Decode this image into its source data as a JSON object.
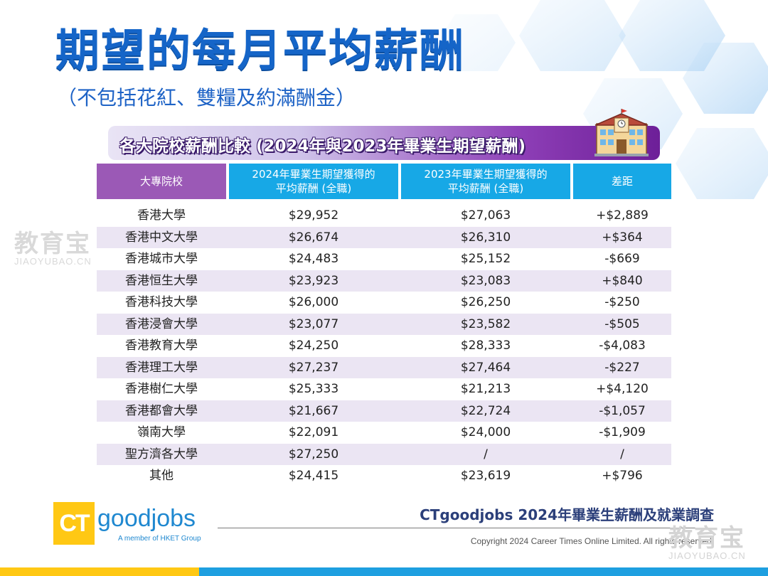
{
  "slide": {
    "title": "期望的每月平均薪酬",
    "subtitle": "（不包括花紅、雙糧及約滿酬金）",
    "section_heading": "各大院校薪酬比較 (2024年與2023年畢業生期望薪酬)"
  },
  "table": {
    "headers": {
      "school": "大專院校",
      "y2024_line1": "2024年畢業生期望獲得的",
      "y2024_line2": "平均薪酬 (全職)",
      "y2023_line1": "2023年畢業生期望獲得的",
      "y2023_line2": "平均薪酬 (全職)",
      "diff": "差距"
    },
    "rows": [
      {
        "school": "香港大學",
        "y2024": "$29,952",
        "y2023": "$27,063",
        "diff": "+$2,889"
      },
      {
        "school": "香港中文大學",
        "y2024": "$26,674",
        "y2023": "$26,310",
        "diff": "+$364"
      },
      {
        "school": "香港城市大學",
        "y2024": "$24,483",
        "y2023": "$25,152",
        "diff": "-$669"
      },
      {
        "school": "香港恒生大學",
        "y2024": "$23,923",
        "y2023": "$23,083",
        "diff": "+$840"
      },
      {
        "school": "香港科技大學",
        "y2024": "$26,000",
        "y2023": "$26,250",
        "diff": "-$250"
      },
      {
        "school": "香港浸會大學",
        "y2024": "$23,077",
        "y2023": "$23,582",
        "diff": "-$505"
      },
      {
        "school": "香港教育大學",
        "y2024": "$24,250",
        "y2023": "$28,333",
        "diff": "-$4,083"
      },
      {
        "school": "香港理工大學",
        "y2024": "$27,237",
        "y2023": "$27,464",
        "diff": "-$227"
      },
      {
        "school": "香港樹仁大學",
        "y2024": "$25,333",
        "y2023": "$21,213",
        "diff": "+$4,120"
      },
      {
        "school": "香港都會大學",
        "y2024": "$21,667",
        "y2023": "$22,724",
        "diff": "-$1,057"
      },
      {
        "school": "嶺南大學",
        "y2024": "$22,091",
        "y2023": "$24,000",
        "diff": "-$1,909"
      },
      {
        "school": "聖方濟各大學",
        "y2024": "$27,250",
        "y2023": "/",
        "diff": "/"
      },
      {
        "school": "其他",
        "y2024": "$24,415",
        "y2023": "$23,619",
        "diff": "+$796"
      }
    ]
  },
  "watermark": {
    "cn": "教育宝",
    "en": "JIAOYUBAO.CN"
  },
  "footer": {
    "logo_ct": "CT",
    "logo_word": "goodjobs",
    "logo_tagline": "A member of HKET Group",
    "survey_title": "CTgoodjobs 2024年畢業生薪酬及就業調查",
    "copyright": "Copyright 2024 Career Times Online Limited. All rights reserved."
  },
  "colors": {
    "title_blue": "#1565c8",
    "header_purple": "#9b59b6",
    "header_cyan": "#17a8e6",
    "row_alt": "#ebe5f3",
    "brand_yellow": "#ffc814",
    "brand_blue": "#1e9fe0"
  },
  "icons": {
    "school_building": "school-building-icon"
  }
}
